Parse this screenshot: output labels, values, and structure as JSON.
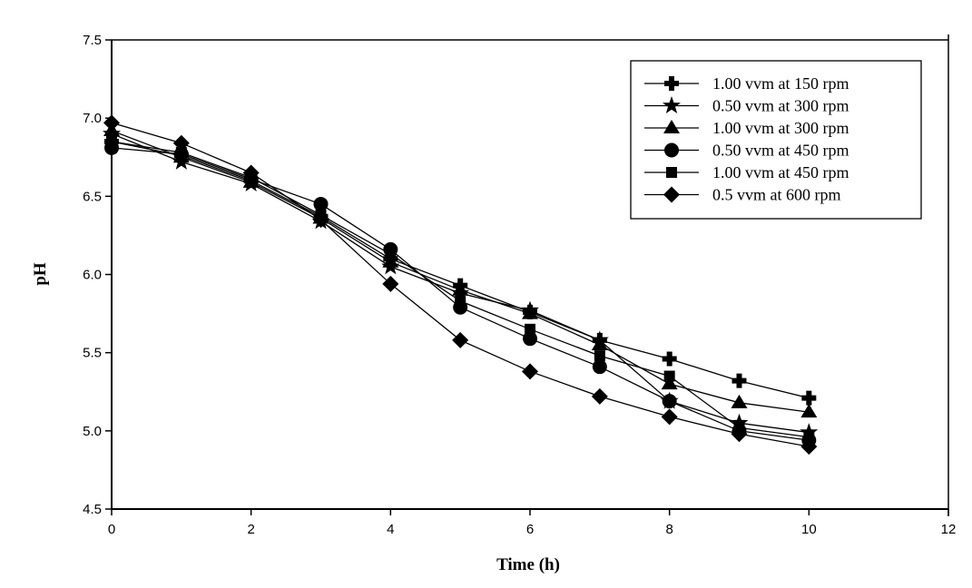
{
  "chart_data": {
    "type": "line",
    "title": "",
    "xlabel": "Time (h)",
    "ylabel": "pH",
    "xlim": [
      0,
      12
    ],
    "ylim": [
      4.5,
      7.5
    ],
    "xticks": [
      "0",
      "2",
      "4",
      "6",
      "8",
      "10",
      "12"
    ],
    "yticks": [
      "4.5",
      "5.0",
      "5.5",
      "6.0",
      "6.5",
      "7.0",
      "7.5"
    ],
    "grid": false,
    "legend_position": "top-right",
    "x": [
      0,
      1,
      2,
      3,
      4,
      5,
      6,
      7,
      8,
      9,
      10
    ],
    "series": [
      {
        "name": "1.00 vvm at 150 rpm",
        "marker": "cross",
        "values": [
          6.85,
          6.76,
          6.6,
          6.37,
          6.1,
          5.93,
          5.76,
          5.58,
          5.46,
          5.32,
          5.21
        ]
      },
      {
        "name": "0.50 vvm at 300 rpm",
        "marker": "star",
        "values": [
          6.9,
          6.72,
          6.58,
          6.34,
          6.05,
          5.88,
          5.77,
          5.58,
          5.19,
          5.05,
          4.99
        ]
      },
      {
        "name": "1.00 vvm at 300 rpm",
        "marker": "triangle",
        "values": [
          6.92,
          6.75,
          6.59,
          6.36,
          6.08,
          5.9,
          5.75,
          5.55,
          5.3,
          5.18,
          5.12
        ]
      },
      {
        "name": "0.50 vvm at 450 rpm",
        "marker": "circle",
        "values": [
          6.81,
          6.77,
          6.61,
          6.45,
          6.16,
          5.79,
          5.59,
          5.41,
          5.19,
          5.0,
          4.94
        ]
      },
      {
        "name": "1.00 vvm at 450 rpm",
        "marker": "square",
        "values": [
          6.85,
          6.78,
          6.62,
          6.38,
          6.13,
          5.83,
          5.65,
          5.48,
          5.35,
          5.02,
          4.96
        ]
      },
      {
        "name": "0.5 vvm at 600 rpm",
        "marker": "diamond",
        "values": [
          6.97,
          6.84,
          6.65,
          6.35,
          5.94,
          5.58,
          5.38,
          5.22,
          5.09,
          4.98,
          4.9
        ]
      }
    ]
  }
}
